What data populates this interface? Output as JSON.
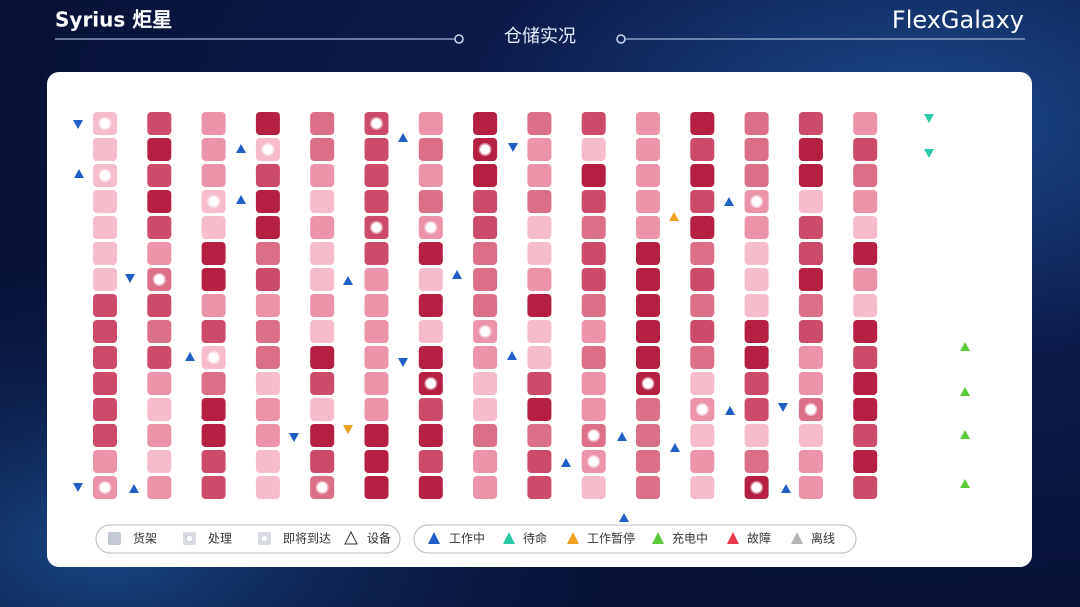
{
  "header": {
    "brand": "Syrius 炬星",
    "title": "仓储实况",
    "product": "FlexGalaxy"
  },
  "legend": {
    "groups": [
      {
        "items": [
          "货架",
          "处理",
          "即将到达",
          "设备"
        ]
      },
      {
        "items": [
          "工作中",
          "待命",
          "工作暂停",
          "充电中",
          "故障",
          "离线"
        ]
      }
    ]
  }
}
